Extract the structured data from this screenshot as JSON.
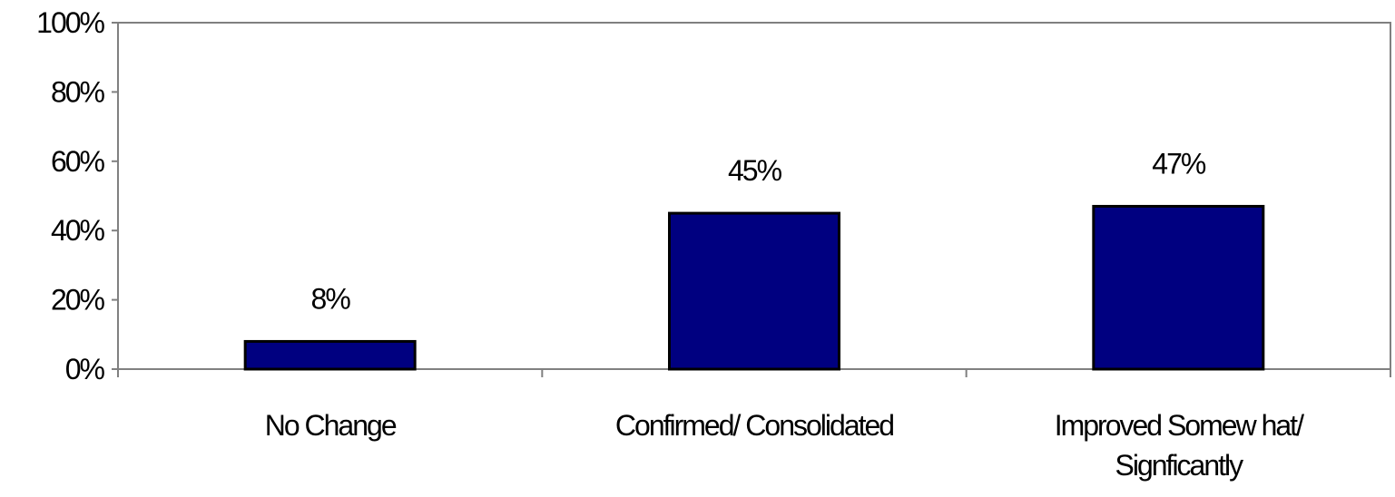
{
  "chart_data": {
    "type": "bar",
    "categories": [
      [
        "No Change"
      ],
      [
        "Confirmed/ Consolidated"
      ],
      [
        "Improved Somew hat/",
        "Signficantly"
      ]
    ],
    "values": [
      8,
      45,
      47
    ],
    "data_labels": [
      "8%",
      "45%",
      "47%"
    ],
    "yticks": [
      "0%",
      "20%",
      "40%",
      "60%",
      "80%",
      "100%"
    ],
    "ylim": [
      0,
      100
    ],
    "title": "",
    "xlabel": "",
    "ylabel": "",
    "grid": false,
    "legend": "none",
    "colors": {
      "bar": "#000080",
      "bar_stroke": "#000000",
      "axis": "#808080"
    }
  }
}
